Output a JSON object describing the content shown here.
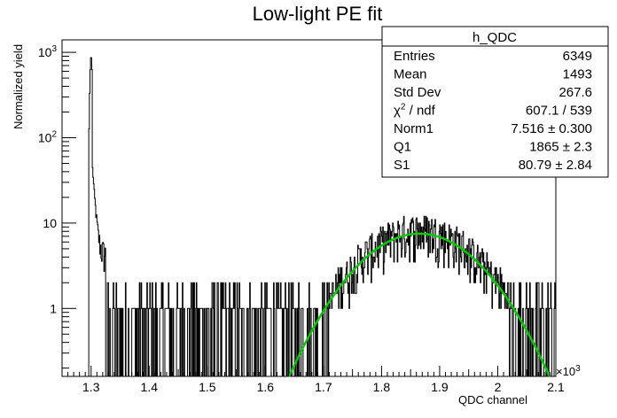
{
  "chart_data": {
    "type": "histogram",
    "title": "Low-light PE fit",
    "xlabel": "QDC channel",
    "ylabel": "Normalized yield",
    "x_multiplier": "×10",
    "x_multiplier_exp": "3",
    "xlim": [
      1.25,
      2.1
    ],
    "ylim": [
      0.16,
      1400
    ],
    "yscale": "log",
    "x_ticks": [
      "1.3",
      "1.4",
      "1.5",
      "1.6",
      "1.7",
      "1.8",
      "1.9",
      "2",
      "2.1"
    ],
    "x_tick_values": [
      1.3,
      1.4,
      1.5,
      1.6,
      1.7,
      1.8,
      1.9,
      2.0,
      2.1
    ],
    "y_ticks": [
      {
        "value": 1,
        "base": "1",
        "exp": ""
      },
      {
        "value": 10,
        "base": "10",
        "exp": ""
      },
      {
        "value": 100,
        "base": "10",
        "exp": "2"
      },
      {
        "value": 1000,
        "base": "10",
        "exp": "3"
      }
    ],
    "histogram": {
      "name": "h_QDC",
      "color": "#000000",
      "peak": {
        "x": 1.3,
        "value": 900
      },
      "pedestal_edge": 1.296,
      "end": 2.1,
      "bin_width": 0.001
    },
    "fit": {
      "function": "Norm1 * exp(-0.5*((x-Q1)/S1)^2)",
      "color": "#00cc00",
      "norm": 7.516,
      "mean": 1865,
      "sigma": 80.79,
      "x_range": [
        1.64,
        2.09
      ]
    },
    "stats_box": {
      "title": "h_QDC",
      "rows": [
        {
          "label": "Entries",
          "value": "6349"
        },
        {
          "label": "Mean",
          "value": "1493"
        },
        {
          "label": "Std Dev",
          "value": "267.6"
        },
        {
          "label": "χ",
          "label_sup": "2",
          "label_rest": " / ndf",
          "value": "607.1 / 539"
        },
        {
          "label": "Norm1",
          "value": "7.516 ± 0.300"
        },
        {
          "label": "Q1",
          "value": "1865 ± 2.3"
        },
        {
          "label": "S1",
          "value": "80.79 ± 2.84"
        }
      ]
    }
  }
}
